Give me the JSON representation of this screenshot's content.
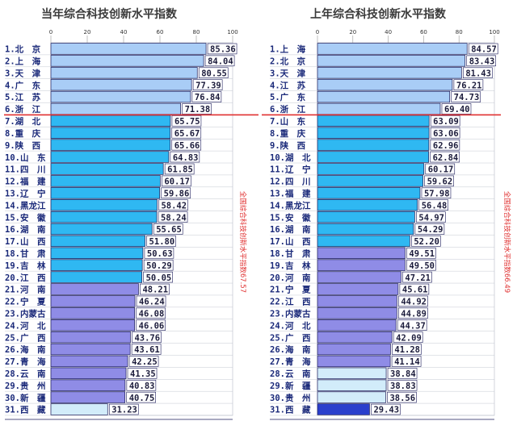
{
  "chart_data": [
    {
      "type": "bar",
      "orientation": "horizontal",
      "title": "当年综合科技创新水平指数",
      "xlim": [
        0,
        100
      ],
      "ticks": [
        0,
        20,
        40,
        60,
        80,
        100
      ],
      "annotation": "全国综合科技创新水平指数67.57",
      "categories": [
        "1.北　京",
        "2.上　海",
        "3.天　津",
        "4.广　东",
        "5.江　苏",
        "6.浙　江",
        "7.湖　北",
        "8.重　庆",
        "9.陕　西",
        "10.山　东",
        "11.四　川",
        "12.福　建",
        "13.辽　宁",
        "14.黑龙江",
        "15.安　徽",
        "16.湖　南",
        "17.山　西",
        "18.甘　肃",
        "19.吉　林",
        "20.江　西",
        "21.河　南",
        "22.宁　夏",
        "23.内蒙古",
        "24.河　北",
        "25.广　西",
        "26.海　南",
        "27.青　海",
        "28.云　南",
        "29.贵　州",
        "30.新　疆",
        "31.西　藏"
      ],
      "values": [
        85.36,
        84.04,
        80.55,
        77.39,
        76.84,
        71.38,
        65.75,
        65.67,
        65.66,
        64.83,
        61.85,
        60.17,
        59.86,
        58.42,
        58.24,
        55.65,
        51.8,
        50.63,
        50.29,
        50.05,
        48.21,
        46.24,
        46.08,
        46.06,
        43.76,
        43.61,
        42.25,
        41.35,
        40.83,
        40.75,
        31.23
      ],
      "labels": [
        "85.36",
        "84.04",
        "80.55",
        "77.39",
        "76.84",
        "71.38",
        "65.75",
        "65.67",
        "65.66",
        "64.83",
        "61.85",
        "60.17",
        "59.86",
        "58.42",
        "58.24",
        "55.65",
        "51.80",
        "50.63",
        "50.29",
        "50.05",
        "48.21",
        "46.24",
        "46.08",
        "46.06",
        "43.76",
        "43.61",
        "42.25",
        "41.35",
        "40.83",
        "40.75",
        "31.23"
      ],
      "tiers": [
        1,
        1,
        1,
        1,
        1,
        1,
        2,
        2,
        2,
        2,
        2,
        2,
        2,
        2,
        2,
        2,
        2,
        2,
        2,
        2,
        3,
        3,
        3,
        3,
        3,
        3,
        3,
        3,
        3,
        3,
        4
      ]
    },
    {
      "type": "bar",
      "orientation": "horizontal",
      "title": "上年综合科技创新水平指数",
      "xlim": [
        0,
        100
      ],
      "ticks": [
        0,
        20,
        40,
        60,
        80,
        100
      ],
      "annotation": "全国综合科技创新水平指数66.49",
      "categories": [
        "1.上　海",
        "2.北　京",
        "3.天　津",
        "4.江　苏",
        "5.广　东",
        "6.浙　江",
        "7.山　东",
        "8.重　庆",
        "9.陕　西",
        "10.湖　北",
        "11.辽　宁",
        "12.四　川",
        "13.福　建",
        "14.黑龙江",
        "15.安　徽",
        "16.湖　南",
        "17.山　西",
        "18.甘　肃",
        "19.吉　林",
        "20.河　南",
        "21.宁　夏",
        "22.江　西",
        "23.内蒙古",
        "24.河　北",
        "25.广　西",
        "26.海　南",
        "27.青　海",
        "28.云　南",
        "29.新　疆",
        "30.贵　州",
        "31.西　藏"
      ],
      "values": [
        84.57,
        83.43,
        81.43,
        76.21,
        74.73,
        69.4,
        63.09,
        63.06,
        62.96,
        62.84,
        60.17,
        59.62,
        57.98,
        56.48,
        54.97,
        54.29,
        52.2,
        49.51,
        49.5,
        47.21,
        45.61,
        44.92,
        44.89,
        44.37,
        42.09,
        41.28,
        41.14,
        38.84,
        38.83,
        38.56,
        29.43
      ],
      "labels": [
        "84.57",
        "83.43",
        "81.43",
        "76.21",
        "74.73",
        "69.40",
        "63.09",
        "63.06",
        "62.96",
        "62.84",
        "60.17",
        "59.62",
        "57.98",
        "56.48",
        "54.97",
        "54.29",
        "52.20",
        "49.51",
        "49.50",
        "47.21",
        "45.61",
        "44.92",
        "44.89",
        "44.37",
        "42.09",
        "41.28",
        "41.14",
        "38.84",
        "38.83",
        "38.56",
        "29.43"
      ],
      "tiers": [
        1,
        1,
        1,
        1,
        1,
        1,
        2,
        2,
        2,
        2,
        2,
        2,
        2,
        2,
        2,
        2,
        2,
        3,
        3,
        3,
        3,
        3,
        3,
        3,
        3,
        3,
        3,
        4,
        4,
        4,
        5
      ]
    }
  ],
  "colors": {
    "tier1": "#a9cdf6",
    "tier2": "#2fb8f2",
    "tier3": "#8f8ce6",
    "tier4": "#d2ecfa",
    "tier5": "#2a3fcc",
    "divider": "#e03030",
    "title": "#3a3a3a",
    "grid": "#c8ccd6"
  }
}
